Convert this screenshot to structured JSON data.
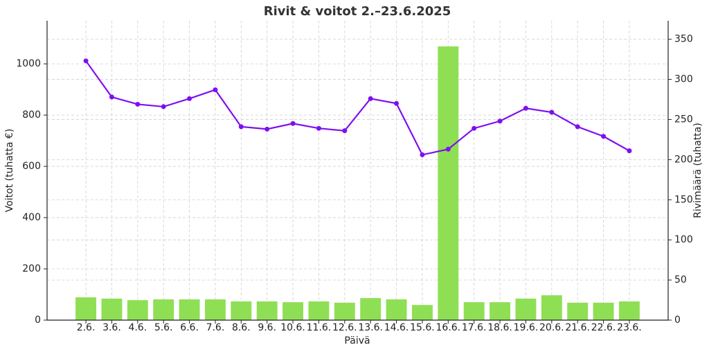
{
  "chart_data": {
    "type": "bar",
    "title": "Rivit & voitot 2.–23.6.2025",
    "x_label": "Päivä",
    "y_label": "Voitot (tuhatta €)",
    "y2_label": "Rivimäärä (tuhatta)",
    "categories": [
      "2.6.",
      "3.6.",
      "4.6.",
      "5.6.",
      "6.6.",
      "7.6.",
      "8.6.",
      "9.6.",
      "10.6.",
      "11.6.",
      "12.6.",
      "13.6.",
      "14.6.",
      "15.6.",
      "16.6.",
      "17.6.",
      "18.6.",
      "19.6.",
      "20.6.",
      "21.6.",
      "22.6.",
      "23.6."
    ],
    "series": [
      {
        "type": "bar",
        "color": "#8fdf55",
        "axis": "y",
        "values": [
          89,
          84,
          78,
          81,
          81,
          81,
          73,
          73,
          70,
          73,
          68,
          86,
          81,
          59,
          1068,
          70,
          70,
          84,
          97,
          68,
          68,
          73
        ]
      },
      {
        "type": "line",
        "color": "#7f0ff0",
        "axis": "y2",
        "values": [
          323,
          278,
          269,
          266,
          276,
          287,
          241,
          238,
          245,
          239,
          236,
          276,
          270,
          206,
          213,
          239,
          248,
          264,
          259,
          241,
          229,
          211
        ]
      }
    ],
    "ylim": [
      0,
      1168
    ],
    "yticks": [
      0,
      200,
      400,
      600,
      800,
      1000
    ],
    "y2lim": [
      0,
      373
    ],
    "y2ticks": [
      0,
      50,
      100,
      150,
      200,
      250,
      300,
      350
    ],
    "grid": true
  }
}
